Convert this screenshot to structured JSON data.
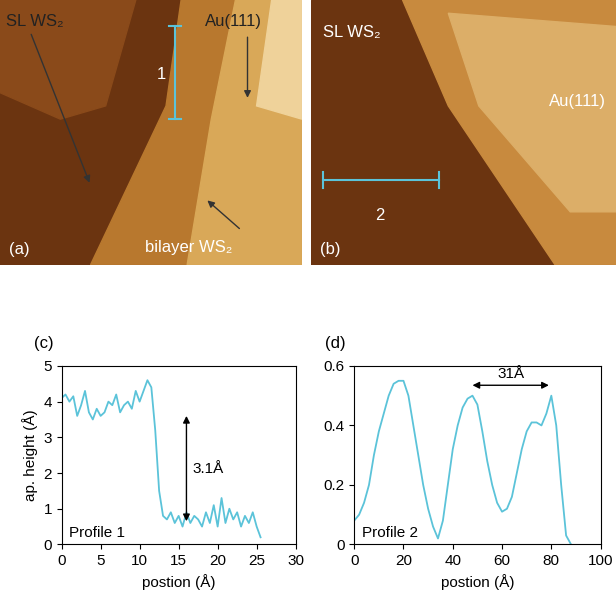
{
  "images": [
    {
      "panel": "(a)",
      "labels": [
        "SL WS₂",
        "Au(111)",
        "bilayer WS₂"
      ],
      "profile_marker": "1"
    },
    {
      "panel": "(b)",
      "labels": [
        "SL WS₂",
        "Au(111)"
      ],
      "profile_marker": "2"
    }
  ],
  "chart_data": [
    {
      "type": "line",
      "panel": "(c)",
      "x_label": "postion (Å)",
      "y_label": "ap. height (Å)",
      "xlim": [
        0,
        30
      ],
      "xticks": [
        0,
        5,
        10,
        15,
        20,
        25,
        30
      ],
      "ylim": [
        0,
        5
      ],
      "yticks": [
        0,
        1,
        2,
        3,
        4,
        5
      ],
      "series": [
        {
          "name": "Profile 1",
          "color": "#5bc3d9",
          "x": [
            0,
            0.5,
            1,
            1.5,
            2,
            2.5,
            3,
            3.5,
            4,
            4.5,
            5,
            5.5,
            6,
            6.5,
            7,
            7.5,
            8,
            8.5,
            9,
            9.5,
            10,
            10.5,
            11,
            11.5,
            12,
            12.5,
            13,
            13.5,
            14,
            14.5,
            15,
            15.5,
            16,
            16.5,
            17,
            17.5,
            18,
            18.5,
            19,
            19.5,
            20,
            20.5,
            21,
            21.5,
            22,
            22.5,
            23,
            23.5,
            24,
            24.5,
            25,
            25.5
          ],
          "values": [
            4.1,
            4.2,
            4.0,
            4.15,
            3.6,
            3.9,
            4.3,
            3.7,
            3.5,
            3.8,
            3.6,
            3.7,
            4.0,
            3.9,
            4.2,
            3.7,
            3.9,
            4.0,
            3.8,
            4.3,
            4.0,
            4.3,
            4.6,
            4.4,
            3.2,
            1.5,
            0.8,
            0.7,
            0.9,
            0.6,
            0.8,
            0.5,
            0.9,
            0.6,
            0.8,
            0.7,
            0.5,
            0.9,
            0.6,
            1.1,
            0.5,
            1.3,
            0.6,
            1.0,
            0.7,
            0.9,
            0.5,
            0.8,
            0.6,
            0.9,
            0.5,
            0.2
          ]
        }
      ],
      "annotations": [
        {
          "text": "3.1Å",
          "x": 16,
          "y_from": 0.65,
          "y_to": 3.6
        }
      ]
    },
    {
      "type": "line",
      "panel": "(d)",
      "x_label": "postion (Å)",
      "xlim": [
        0,
        100
      ],
      "xticks": [
        0,
        20,
        40,
        60,
        80,
        100
      ],
      "ylim": [
        0,
        0.6
      ],
      "yticks": [
        0,
        0.2,
        0.4,
        0.6
      ],
      "series": [
        {
          "name": "Profile 2",
          "color": "#5bc3d9",
          "x": [
            0,
            2,
            4,
            6,
            8,
            10,
            12,
            14,
            16,
            18,
            20,
            22,
            24,
            26,
            28,
            30,
            32,
            34,
            36,
            38,
            40,
            42,
            44,
            46,
            48,
            50,
            52,
            54,
            56,
            58,
            60,
            62,
            64,
            66,
            68,
            70,
            72,
            74,
            76,
            78,
            80,
            82,
            84,
            86,
            88
          ],
          "values": [
            0.08,
            0.1,
            0.14,
            0.2,
            0.3,
            0.38,
            0.44,
            0.5,
            0.54,
            0.55,
            0.55,
            0.5,
            0.4,
            0.3,
            0.2,
            0.12,
            0.06,
            0.02,
            0.08,
            0.2,
            0.32,
            0.4,
            0.46,
            0.49,
            0.5,
            0.47,
            0.38,
            0.28,
            0.2,
            0.14,
            0.11,
            0.12,
            0.16,
            0.24,
            0.32,
            0.38,
            0.41,
            0.41,
            0.4,
            0.44,
            0.5,
            0.4,
            0.2,
            0.03,
            0.0
          ]
        }
      ],
      "annotations": [
        {
          "text": "31Å",
          "x_from": 48,
          "x_to": 79,
          "y": 0.535
        }
      ]
    }
  ]
}
